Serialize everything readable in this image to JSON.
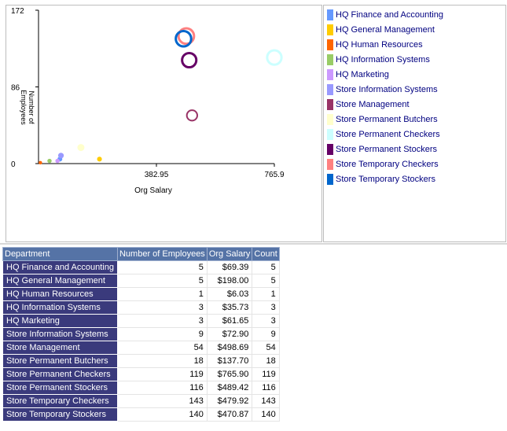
{
  "chart_data": {
    "type": "scatter",
    "xlabel": "Org Salary",
    "ylabel": "Number of Employees",
    "xlim": [
      0,
      765.9
    ],
    "ylim": [
      0,
      172
    ],
    "x_ticks": [
      "382.95",
      "765.9"
    ],
    "y_ticks": [
      "0",
      "86",
      "172"
    ],
    "legend_position": "right",
    "series": [
      {
        "name": "HQ Finance and Accounting",
        "color": "#6699ff",
        "x": 69.39,
        "y": 5,
        "size": 5
      },
      {
        "name": "HQ General Management",
        "color": "#ffcc00",
        "x": 198.0,
        "y": 5,
        "size": 5
      },
      {
        "name": "HQ Human Resources",
        "color": "#ff6600",
        "x": 6.03,
        "y": 1,
        "size": 1
      },
      {
        "name": "HQ Information Systems",
        "color": "#99cc66",
        "x": 35.73,
        "y": 3,
        "size": 3
      },
      {
        "name": "HQ Marketing",
        "color": "#cc99ff",
        "x": 61.65,
        "y": 3,
        "size": 3
      },
      {
        "name": "Store Information Systems",
        "color": "#9999ff",
        "x": 72.9,
        "y": 9,
        "size": 9
      },
      {
        "name": "Store Management",
        "color": "#993366",
        "x": 498.69,
        "y": 54,
        "size": 54
      },
      {
        "name": "Store Permanent Butchers",
        "color": "#ffffcc",
        "x": 137.7,
        "y": 18,
        "size": 18
      },
      {
        "name": "Store Permanent Checkers",
        "color": "#ccffff",
        "x": 765.9,
        "y": 119,
        "size": 119
      },
      {
        "name": "Store Permanent Stockers",
        "color": "#660066",
        "x": 489.42,
        "y": 116,
        "size": 116
      },
      {
        "name": "Store Temporary Checkers",
        "color": "#ff8080",
        "x": 479.92,
        "y": 143,
        "size": 143
      },
      {
        "name": "Store Temporary Stockers",
        "color": "#0066cc",
        "x": 470.87,
        "y": 140,
        "size": 140
      }
    ]
  },
  "table": {
    "headers": [
      "Department",
      "Number of Employees",
      "Org Salary",
      "Count"
    ],
    "rows": [
      [
        "HQ Finance and Accounting",
        "5",
        "$69.39",
        "5"
      ],
      [
        "HQ General Management",
        "5",
        "$198.00",
        "5"
      ],
      [
        "HQ Human Resources",
        "1",
        "$6.03",
        "1"
      ],
      [
        "HQ Information Systems",
        "3",
        "$35.73",
        "3"
      ],
      [
        "HQ Marketing",
        "3",
        "$61.65",
        "3"
      ],
      [
        "Store Information Systems",
        "9",
        "$72.90",
        "9"
      ],
      [
        "Store Management",
        "54",
        "$498.69",
        "54"
      ],
      [
        "Store Permanent Butchers",
        "18",
        "$137.70",
        "18"
      ],
      [
        "Store Permanent Checkers",
        "119",
        "$765.90",
        "119"
      ],
      [
        "Store Permanent Stockers",
        "116",
        "$489.42",
        "116"
      ],
      [
        "Store Temporary Checkers",
        "143",
        "$479.92",
        "143"
      ],
      [
        "Store Temporary Stockers",
        "140",
        "$470.87",
        "140"
      ]
    ]
  }
}
